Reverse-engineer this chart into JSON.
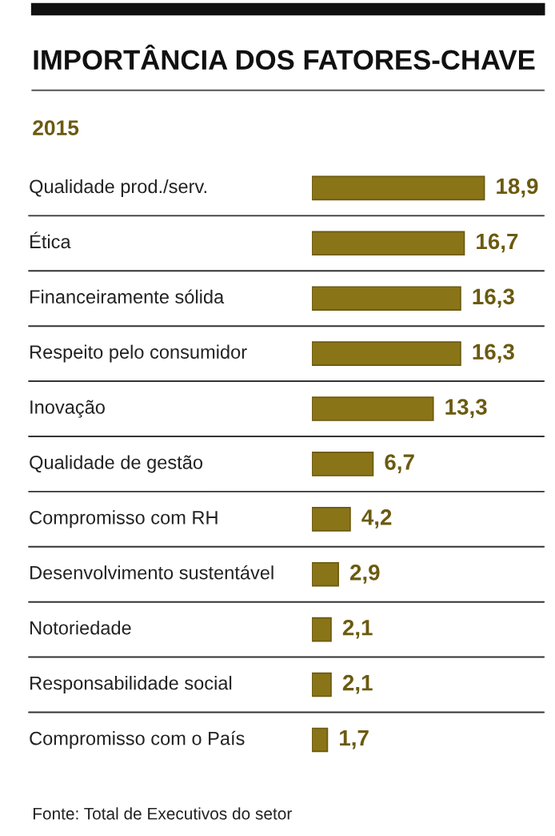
{
  "chart_data": {
    "type": "bar",
    "orientation": "horizontal",
    "title": "IMPORTÂNCIA DOS FATORES-CHAVE",
    "subtitle": "2015",
    "categories": [
      "Qualidade prod./serv.",
      "Ética",
      "Financeiramente sólida",
      "Respeito pelo consumidor",
      "Inovação",
      "Qualidade de gestão",
      "Compromisso com RH",
      "Desenvolvimento sustentável",
      "Notoriedade",
      "Responsabilidade social",
      "Compromisso com o País"
    ],
    "values": [
      18.9,
      16.7,
      16.3,
      16.3,
      13.3,
      6.7,
      4.2,
      2.9,
      2.1,
      2.1,
      1.7
    ],
    "value_labels": [
      "18,9",
      "16,7",
      "16,3",
      "16,3",
      "13,3",
      "6,7",
      "4,2",
      "2,9",
      "2,1",
      "2,1",
      "1,7"
    ],
    "color": "#8a7418",
    "annotations": [
      "Fonte: Total de Executivos do setor"
    ]
  }
}
